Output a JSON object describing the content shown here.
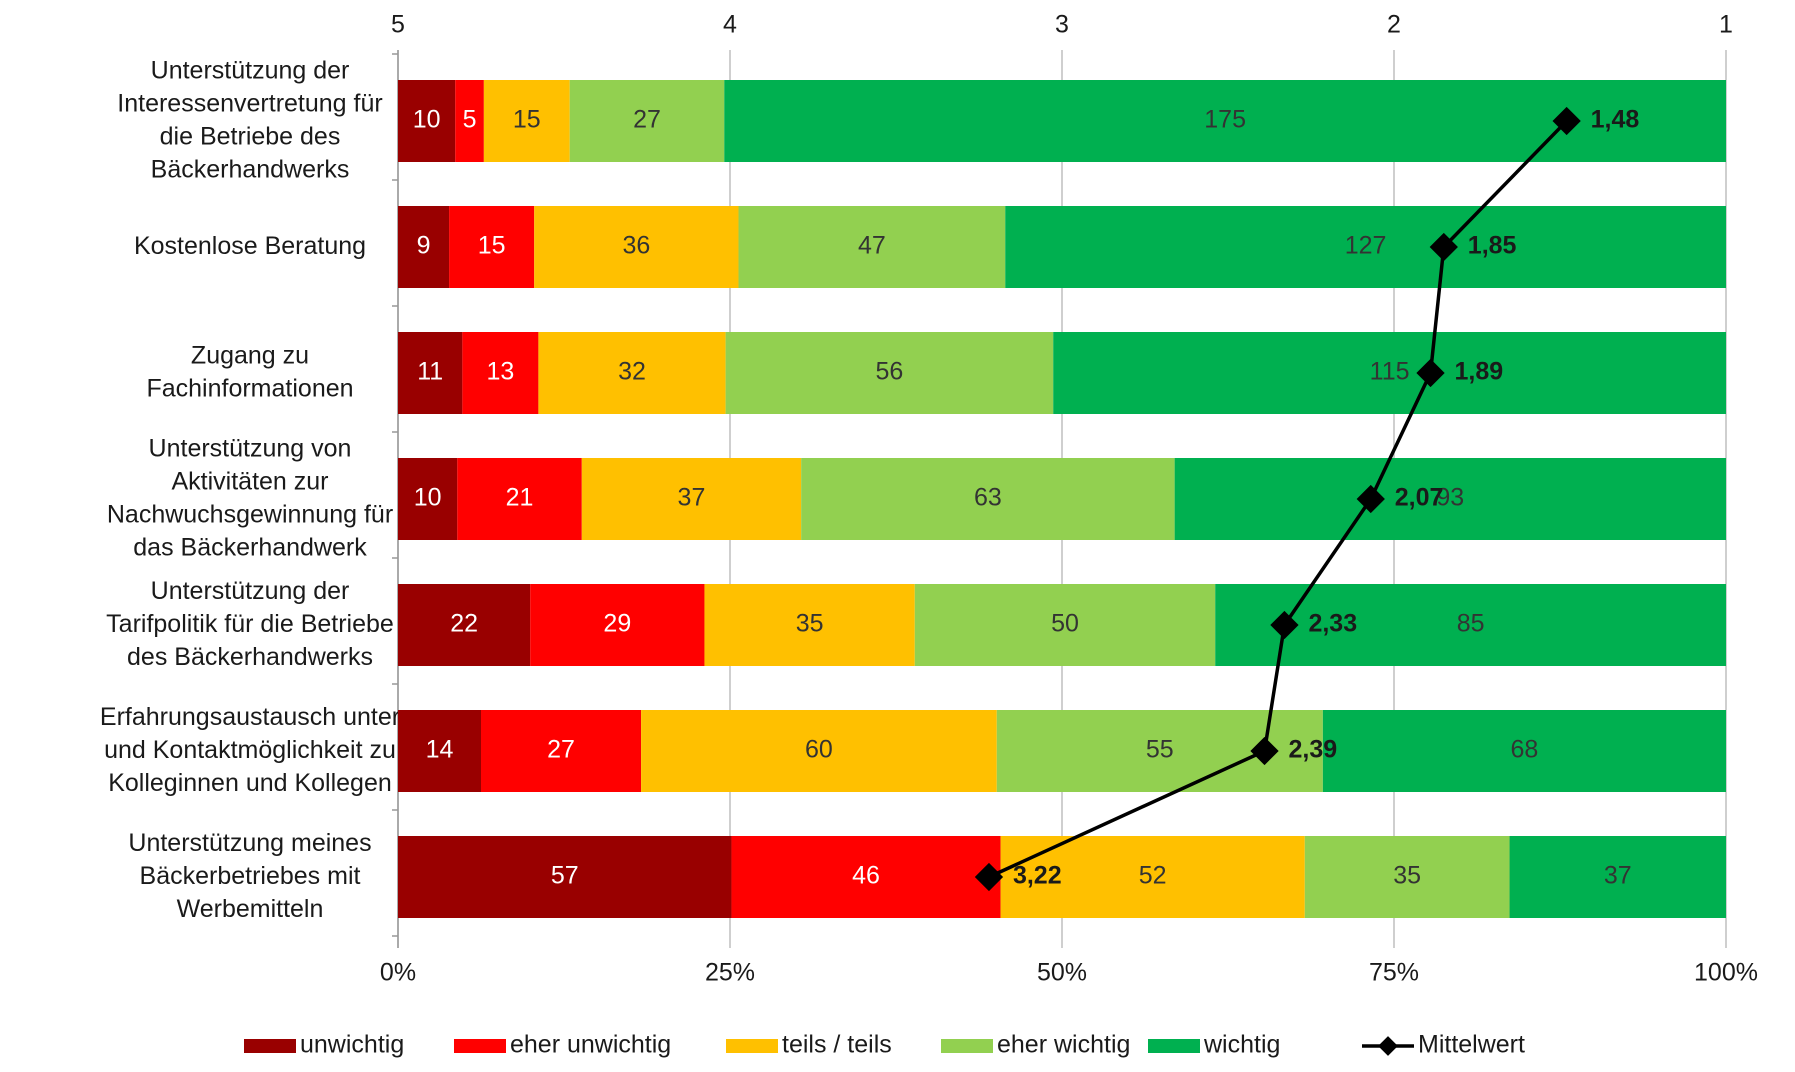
{
  "chart_data": {
    "type": "bar",
    "orientation": "horizontal",
    "stacked": "percent",
    "categories": [
      [
        "Unterstützung der",
        "Interessenvertretung für",
        "die Betriebe des",
        "Bäckerhandwerks"
      ],
      [
        "Kostenlose Beratung"
      ],
      [
        "Zugang zu",
        "Fachinformationen"
      ],
      [
        "Unterstützung von",
        "Aktivitäten zur",
        "Nachwuchsgewinnung für",
        "das Bäckerhandwerk"
      ],
      [
        "Unterstützung der",
        "Tarifpolitik für die Betriebe",
        "des Bäckerhandwerks"
      ],
      [
        "Erfahrungsaustausch unter",
        "und Kontaktmöglichkeit zu",
        "Kolleginnen und Kollegen"
      ],
      [
        "Unterstützung meines",
        "Bäckerbetriebes mit",
        "Werbemitteln"
      ]
    ],
    "series": [
      {
        "name": "unwichtig",
        "color": "#990000",
        "values": [
          10,
          9,
          11,
          10,
          22,
          14,
          57
        ]
      },
      {
        "name": "eher unwichtig",
        "color": "#ff0000",
        "values": [
          5,
          15,
          13,
          21,
          29,
          27,
          46
        ]
      },
      {
        "name": "teils / teils",
        "color": "#ffc000",
        "values": [
          15,
          36,
          32,
          37,
          35,
          60,
          52
        ]
      },
      {
        "name": "eher wichtig",
        "color": "#92d050",
        "values": [
          27,
          47,
          56,
          63,
          50,
          55,
          35
        ]
      },
      {
        "name": "wichtig",
        "color": "#00b050",
        "values": [
          175,
          127,
          115,
          93,
          85,
          68,
          37
        ]
      },
      {
        "name": "Mittelwert",
        "color": "#000000",
        "type": "line",
        "axis": "x2",
        "values": [
          1.48,
          1.85,
          1.89,
          2.07,
          2.33,
          2.39,
          3.22
        ],
        "value_labels": [
          "1,48",
          "1,85",
          "1,89",
          "2,07",
          "2,33",
          "2,39",
          "3,22"
        ]
      }
    ],
    "xlim": [
      0,
      100
    ],
    "xticks": [
      {
        "value": 0,
        "label": "0%"
      },
      {
        "value": 25,
        "label": "25%"
      },
      {
        "value": 50,
        "label": "50%"
      },
      {
        "value": 75,
        "label": "75%"
      },
      {
        "value": 100,
        "label": "100%"
      }
    ],
    "x2lim": [
      5,
      1
    ],
    "x2ticks": [
      5,
      4,
      3,
      2,
      1
    ],
    "grid": true,
    "legend": "bottom"
  }
}
